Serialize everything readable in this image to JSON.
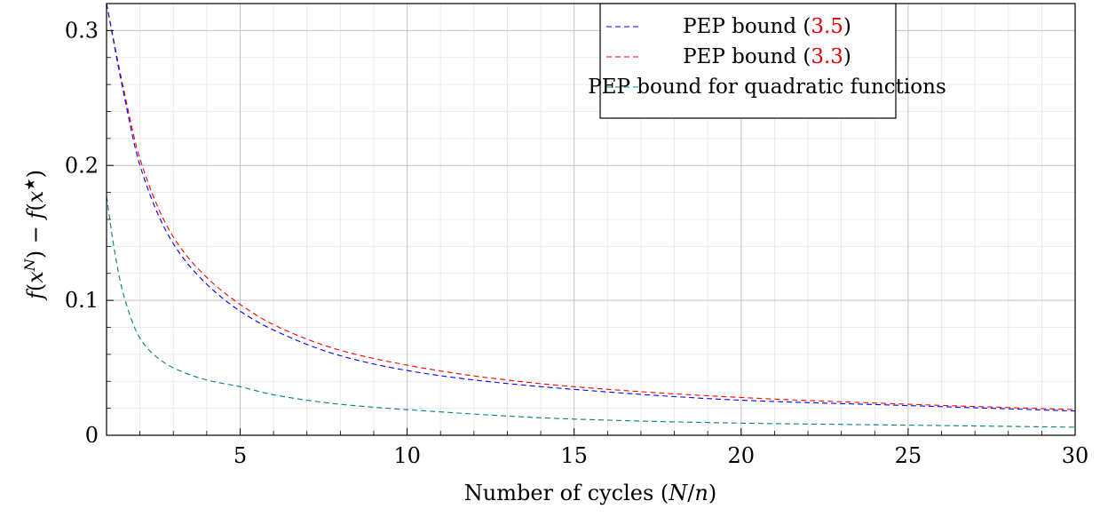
{
  "chart_data": {
    "type": "line",
    "xlabel": "Number of cycles (N/n)",
    "ylabel": "f(x^N) − f(x★)",
    "xlim": [
      1,
      30
    ],
    "ylim": [
      0,
      0.32
    ],
    "x_ticks": [
      5,
      10,
      15,
      20,
      25,
      30
    ],
    "y_ticks": [
      0,
      0.1,
      0.2,
      0.3
    ],
    "x_tick_labels": [
      "5",
      "10",
      "15",
      "20",
      "25",
      "30"
    ],
    "y_tick_labels": [
      "0",
      "0.1",
      "0.2",
      "0.3"
    ],
    "grid": true,
    "minor_grid": true,
    "legend_position": "top-right",
    "line_style": "dashed",
    "series": [
      {
        "name": "PEP bound (3.5)",
        "name_text": "PEP bound (",
        "name_ref": "3.5",
        "name_close": ")",
        "color": "#0000ff",
        "x": [
          1,
          1.5,
          2,
          3,
          4,
          5,
          6,
          8,
          10,
          12,
          15,
          20,
          25,
          30
        ],
        "y": [
          0.32,
          0.255,
          0.2,
          0.142,
          0.112,
          0.092,
          0.078,
          0.059,
          0.048,
          0.041,
          0.034,
          0.026,
          0.022,
          0.018
        ]
      },
      {
        "name": "PEP bound (3.3)",
        "name_text": "PEP bound (",
        "name_ref": "3.3",
        "name_close": ")",
        "color": "#ff0000",
        "x": [
          1,
          1.5,
          2,
          3,
          4,
          5,
          6,
          8,
          10,
          12,
          15,
          20,
          25,
          30
        ],
        "y": [
          0.32,
          0.258,
          0.205,
          0.147,
          0.117,
          0.097,
          0.082,
          0.063,
          0.052,
          0.044,
          0.036,
          0.028,
          0.023,
          0.019
        ]
      },
      {
        "name": "PEP bound for quadratic functions",
        "name_text": "PEP bound for quadratic functions",
        "name_ref": "",
        "name_close": "",
        "color": "#008080",
        "x": [
          1,
          1.25,
          1.5,
          2,
          2.5,
          3,
          4,
          5,
          6,
          8,
          10,
          15,
          20,
          25,
          30
        ],
        "y": [
          0.177,
          0.135,
          0.105,
          0.072,
          0.058,
          0.05,
          0.041,
          0.036,
          0.03,
          0.023,
          0.019,
          0.012,
          0.009,
          0.0075,
          0.006
        ]
      }
    ]
  }
}
